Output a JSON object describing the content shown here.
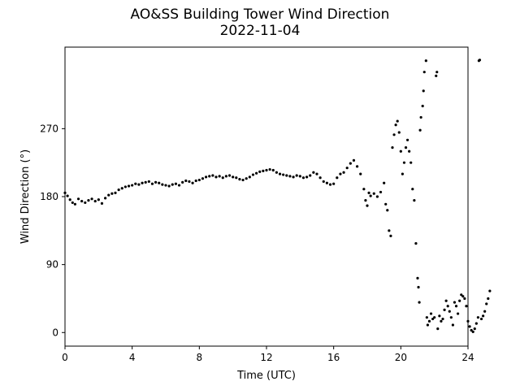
{
  "chart_data": {
    "type": "scatter",
    "title": "AO&SS Building Tower Wind Direction",
    "subtitle": "2022-11-04",
    "xlabel": "Time (UTC)",
    "ylabel": "Wind Direction (°)",
    "xlim": [
      0,
      24
    ],
    "ylim": [
      -18,
      378
    ],
    "xticks": [
      0,
      4,
      8,
      12,
      16,
      20,
      24
    ],
    "yticks": [
      0,
      90,
      180,
      270
    ],
    "grid": false,
    "marker_color": "#000000",
    "series": [
      {
        "points": [
          [
            0.0,
            185
          ],
          [
            0.15,
            181
          ],
          [
            0.3,
            176
          ],
          [
            0.45,
            172
          ],
          [
            0.6,
            170
          ],
          [
            0.8,
            177
          ],
          [
            1.0,
            174
          ],
          [
            1.2,
            172
          ],
          [
            1.4,
            175
          ],
          [
            1.6,
            177
          ],
          [
            1.8,
            174
          ],
          [
            2.0,
            176
          ],
          [
            2.2,
            171
          ],
          [
            2.4,
            178
          ],
          [
            2.6,
            182
          ],
          [
            2.8,
            184
          ],
          [
            3.0,
            185
          ],
          [
            3.2,
            189
          ],
          [
            3.4,
            191
          ],
          [
            3.6,
            193
          ],
          [
            3.8,
            194
          ],
          [
            4.0,
            195
          ],
          [
            4.2,
            197
          ],
          [
            4.4,
            196
          ],
          [
            4.6,
            198
          ],
          [
            4.8,
            199
          ],
          [
            5.0,
            200
          ],
          [
            5.2,
            197
          ],
          [
            5.4,
            199
          ],
          [
            5.6,
            198
          ],
          [
            5.8,
            196
          ],
          [
            6.0,
            195
          ],
          [
            6.2,
            194
          ],
          [
            6.4,
            196
          ],
          [
            6.6,
            197
          ],
          [
            6.8,
            195
          ],
          [
            7.0,
            199
          ],
          [
            7.2,
            201
          ],
          [
            7.4,
            200
          ],
          [
            7.6,
            198
          ],
          [
            7.8,
            201
          ],
          [
            8.0,
            202
          ],
          [
            8.2,
            204
          ],
          [
            8.4,
            206
          ],
          [
            8.6,
            207
          ],
          [
            8.8,
            208
          ],
          [
            9.0,
            206
          ],
          [
            9.2,
            207
          ],
          [
            9.4,
            205
          ],
          [
            9.6,
            207
          ],
          [
            9.8,
            208
          ],
          [
            10.0,
            206
          ],
          [
            10.2,
            205
          ],
          [
            10.4,
            203
          ],
          [
            10.6,
            202
          ],
          [
            10.8,
            204
          ],
          [
            11.0,
            206
          ],
          [
            11.2,
            209
          ],
          [
            11.4,
            211
          ],
          [
            11.6,
            213
          ],
          [
            11.8,
            214
          ],
          [
            12.0,
            215
          ],
          [
            12.2,
            216
          ],
          [
            12.4,
            215
          ],
          [
            12.6,
            212
          ],
          [
            12.8,
            210
          ],
          [
            13.0,
            209
          ],
          [
            13.2,
            208
          ],
          [
            13.4,
            207
          ],
          [
            13.6,
            206
          ],
          [
            13.8,
            208
          ],
          [
            14.0,
            207
          ],
          [
            14.2,
            205
          ],
          [
            14.4,
            206
          ],
          [
            14.6,
            208
          ],
          [
            14.8,
            212
          ],
          [
            15.0,
            210
          ],
          [
            15.2,
            205
          ],
          [
            15.4,
            200
          ],
          [
            15.6,
            198
          ],
          [
            15.8,
            196
          ],
          [
            16.0,
            197
          ],
          [
            16.2,
            205
          ],
          [
            16.4,
            210
          ],
          [
            16.6,
            212
          ],
          [
            16.8,
            218
          ],
          [
            17.0,
            224
          ],
          [
            17.2,
            228
          ],
          [
            17.4,
            220
          ],
          [
            17.6,
            210
          ],
          [
            17.8,
            190
          ],
          [
            17.9,
            175
          ],
          [
            18.0,
            168
          ],
          [
            18.1,
            185
          ],
          [
            18.2,
            181
          ],
          [
            18.4,
            184
          ],
          [
            18.6,
            180
          ],
          [
            18.8,
            186
          ],
          [
            19.0,
            198
          ],
          [
            19.1,
            170
          ],
          [
            19.2,
            162
          ],
          [
            19.3,
            135
          ],
          [
            19.4,
            128
          ],
          [
            19.5,
            245
          ],
          [
            19.6,
            262
          ],
          [
            19.7,
            275
          ],
          [
            19.8,
            280
          ],
          [
            19.9,
            265
          ],
          [
            20.0,
            240
          ],
          [
            20.1,
            210
          ],
          [
            20.2,
            225
          ],
          [
            20.3,
            245
          ],
          [
            20.4,
            255
          ],
          [
            20.5,
            240
          ],
          [
            20.6,
            225
          ],
          [
            20.7,
            190
          ],
          [
            20.8,
            175
          ],
          [
            20.9,
            118
          ],
          [
            21.0,
            72
          ],
          [
            21.05,
            60
          ],
          [
            21.1,
            40
          ],
          [
            21.15,
            268
          ],
          [
            21.2,
            285
          ],
          [
            21.3,
            300
          ],
          [
            21.35,
            320
          ],
          [
            21.4,
            345
          ],
          [
            21.5,
            360
          ],
          [
            21.55,
            20
          ],
          [
            21.6,
            10
          ],
          [
            21.7,
            15
          ],
          [
            21.8,
            25
          ],
          [
            21.9,
            18
          ],
          [
            22.0,
            20
          ],
          [
            22.1,
            340
          ],
          [
            22.15,
            345
          ],
          [
            22.2,
            5
          ],
          [
            22.3,
            22
          ],
          [
            22.4,
            15
          ],
          [
            22.5,
            18
          ],
          [
            22.6,
            30
          ],
          [
            22.7,
            42
          ],
          [
            22.8,
            35
          ],
          [
            22.9,
            28
          ],
          [
            23.0,
            20
          ],
          [
            23.1,
            10
          ],
          [
            23.2,
            40
          ],
          [
            23.3,
            35
          ],
          [
            23.4,
            25
          ],
          [
            23.5,
            42
          ],
          [
            23.6,
            50
          ],
          [
            23.7,
            48
          ],
          [
            23.8,
            45
          ],
          [
            23.9,
            35
          ],
          [
            24.0,
            15
          ],
          [
            24.1,
            8
          ],
          [
            24.2,
            3
          ],
          [
            24.3,
            1
          ],
          [
            24.4,
            5
          ],
          [
            24.5,
            12
          ],
          [
            24.6,
            20
          ],
          [
            24.65,
            360
          ],
          [
            24.7,
            361
          ],
          [
            24.8,
            18
          ],
          [
            24.9,
            22
          ],
          [
            25.0,
            28
          ],
          [
            25.1,
            38
          ],
          [
            25.2,
            45
          ],
          [
            25.3,
            55
          ]
        ]
      }
    ]
  }
}
